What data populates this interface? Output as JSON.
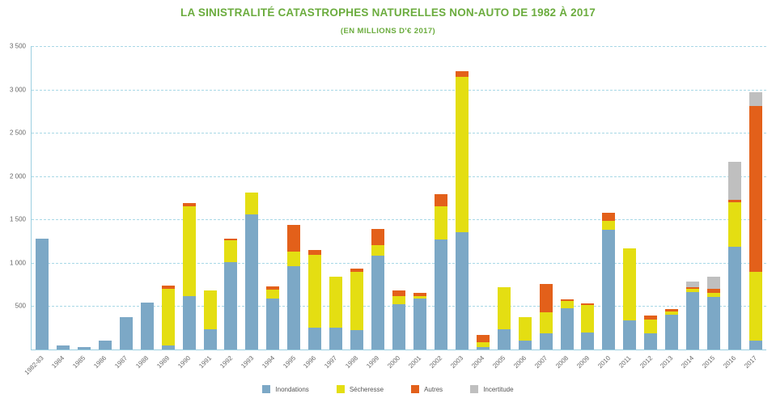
{
  "colors": {
    "title_green": "#6BAC3E",
    "grid_blue": "#A8D8E6",
    "axis_blue": "#9CCFE0",
    "tick_text": "#666666",
    "inondations": "#7CA8C6",
    "secheresse": "#E4DE12",
    "autres": "#E3601A",
    "incertitude": "#BFBFBF"
  },
  "chart_data": {
    "type": "bar",
    "stacked": true,
    "title": "LA SINISTRALITÉ CATASTROPHES NATURELLES NON-AUTO DE 1982 À 2017",
    "subtitle": "(EN MILLIONS D'€ 2017)",
    "xlabel": "",
    "ylabel": "",
    "ylim": [
      0,
      3500
    ],
    "ytick_step": 500,
    "ytick_labels": [
      "500",
      "1 000",
      "1 500",
      "2 000",
      "2 500",
      "3 000",
      "3 500"
    ],
    "grid": true,
    "legend_position": "bottom",
    "categories": [
      "1982-83",
      "1984",
      "1985",
      "1986",
      "1987",
      "1988",
      "1989",
      "1990",
      "1991",
      "1992",
      "1993",
      "1994",
      "1995",
      "1996",
      "1997",
      "1998",
      "1999",
      "2000",
      "2001",
      "2002",
      "2003",
      "2004",
      "2005",
      "2006",
      "2007",
      "2008",
      "2009",
      "2010",
      "2011",
      "2012",
      "2013",
      "2014",
      "2015",
      "2016",
      "2017"
    ],
    "series": [
      {
        "name": "Inondations",
        "color": "#7CA8C6",
        "values": [
          1280,
          50,
          30,
          100,
          370,
          540,
          50,
          620,
          230,
          1010,
          1560,
          590,
          960,
          250,
          250,
          220,
          1080,
          520,
          590,
          1270,
          1350,
          30,
          230,
          100,
          190,
          480,
          200,
          1380,
          340,
          190,
          400,
          660,
          610,
          1190,
          100
        ]
      },
      {
        "name": "Sécheresse",
        "color": "#E4DE12",
        "values": [
          0,
          0,
          0,
          0,
          0,
          0,
          650,
          1030,
          450,
          250,
          250,
          100,
          170,
          840,
          590,
          680,
          120,
          100,
          30,
          380,
          1800,
          50,
          490,
          270,
          240,
          80,
          310,
          100,
          830,
          160,
          40,
          40,
          40,
          510,
          800
        ]
      },
      {
        "name": "Autres",
        "color": "#E3601A",
        "values": [
          0,
          0,
          0,
          0,
          0,
          0,
          40,
          40,
          0,
          20,
          0,
          40,
          310,
          60,
          0,
          30,
          190,
          60,
          30,
          140,
          60,
          90,
          0,
          0,
          330,
          20,
          20,
          100,
          0,
          40,
          30,
          20,
          50,
          30,
          1910
        ]
      },
      {
        "name": "Incertitude",
        "color": "#BFBFBF",
        "values": [
          0,
          0,
          0,
          0,
          0,
          0,
          0,
          0,
          0,
          0,
          0,
          0,
          0,
          0,
          0,
          0,
          0,
          0,
          0,
          0,
          0,
          0,
          0,
          0,
          0,
          0,
          0,
          0,
          0,
          0,
          0,
          60,
          140,
          440,
          160
        ]
      }
    ]
  }
}
